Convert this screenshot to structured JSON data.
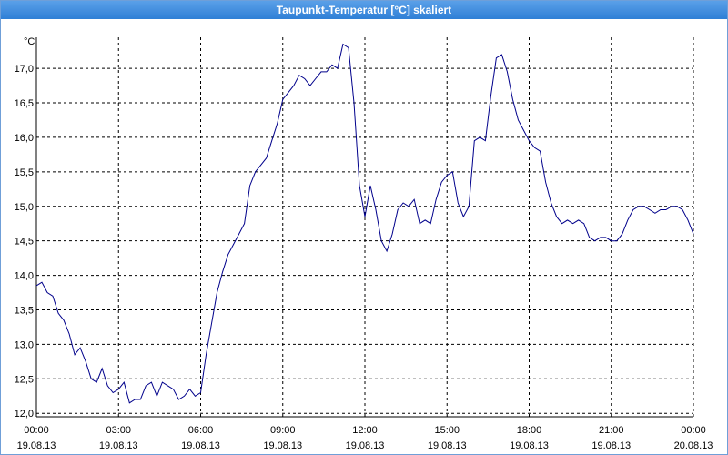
{
  "window": {
    "title": "Taupunkt-Temperatur [°C] skaliert"
  },
  "chart_data": {
    "type": "line",
    "title": "Taupunkt-Temperatur [°C] skaliert",
    "ylabel": "°C",
    "xlabel": "",
    "ylim": [
      11.95,
      17.45
    ],
    "xlim": [
      0,
      24
    ],
    "grid": true,
    "line_color": "#00008b",
    "y_ticks": [
      "12,0",
      "12,5",
      "13,0",
      "13,5",
      "14,0",
      "14,5",
      "15,0",
      "15,5",
      "16,0",
      "16,5",
      "17,0"
    ],
    "x_ticks": [
      {
        "time": "00:00",
        "date": "19.08.13"
      },
      {
        "time": "03:00",
        "date": "19.08.13"
      },
      {
        "time": "06:00",
        "date": "19.08.13"
      },
      {
        "time": "09:00",
        "date": "19.08.13"
      },
      {
        "time": "12:00",
        "date": "19.08.13"
      },
      {
        "time": "15:00",
        "date": "19.08.13"
      },
      {
        "time": "18:00",
        "date": "19.08.13"
      },
      {
        "time": "21:00",
        "date": "19.08.13"
      },
      {
        "time": "00:00",
        "date": "20.08.13"
      }
    ],
    "series": [
      {
        "x": [
          0,
          0.2,
          0.4,
          0.6,
          0.8,
          1.0,
          1.2,
          1.4,
          1.6,
          1.8,
          2.0,
          2.2,
          2.4,
          2.6,
          2.8,
          3.0,
          3.2,
          3.4,
          3.6,
          3.8,
          4.0,
          4.2,
          4.4,
          4.6,
          4.8,
          5.0,
          5.2,
          5.4,
          5.6,
          5.8,
          6.0,
          6.2,
          6.4,
          6.6,
          6.8,
          7.0,
          7.2,
          7.4,
          7.6,
          7.8,
          8.0,
          8.2,
          8.4,
          8.6,
          8.8,
          9.0,
          9.2,
          9.4,
          9.6,
          9.8,
          10.0,
          10.2,
          10.4,
          10.6,
          10.8,
          11.0,
          11.2,
          11.4,
          11.6,
          11.8,
          12.0,
          12.2,
          12.4,
          12.6,
          12.8,
          13.0,
          13.2,
          13.4,
          13.6,
          13.8,
          14.0,
          14.2,
          14.4,
          14.6,
          14.8,
          15.0,
          15.2,
          15.4,
          15.6,
          15.8,
          16.0,
          16.2,
          16.4,
          16.6,
          16.8,
          17.0,
          17.2,
          17.4,
          17.6,
          17.8,
          18.0,
          18.2,
          18.4,
          18.6,
          18.8,
          19.0,
          19.2,
          19.4,
          19.6,
          19.8,
          20.0,
          20.2,
          20.4,
          20.6,
          20.8,
          21.0,
          21.2,
          21.4,
          21.6,
          21.8,
          22.0,
          22.2,
          22.4,
          22.6,
          22.8,
          23.0,
          23.2,
          23.4,
          23.6,
          23.8,
          24.0
        ],
        "y": [
          13.85,
          13.9,
          13.75,
          13.7,
          13.45,
          13.35,
          13.15,
          12.85,
          12.95,
          12.75,
          12.5,
          12.45,
          12.65,
          12.4,
          12.3,
          12.35,
          12.45,
          12.15,
          12.2,
          12.2,
          12.4,
          12.45,
          12.25,
          12.45,
          12.4,
          12.35,
          12.2,
          12.25,
          12.35,
          12.25,
          12.3,
          12.85,
          13.3,
          13.75,
          14.05,
          14.3,
          14.45,
          14.6,
          14.75,
          15.3,
          15.5,
          15.6,
          15.7,
          15.95,
          16.2,
          16.55,
          16.65,
          16.75,
          16.9,
          16.85,
          16.75,
          16.85,
          16.95,
          16.95,
          17.05,
          17.0,
          17.35,
          17.3,
          16.5,
          15.3,
          14.85,
          15.3,
          14.95,
          14.5,
          14.35,
          14.6,
          14.95,
          15.05,
          15.0,
          15.1,
          14.75,
          14.8,
          14.75,
          15.1,
          15.35,
          15.45,
          15.5,
          15.05,
          14.85,
          15.0,
          15.95,
          16.0,
          15.95,
          16.6,
          17.15,
          17.2,
          16.95,
          16.55,
          16.25,
          16.1,
          15.95,
          15.85,
          15.8,
          15.35,
          15.05,
          14.85,
          14.75,
          14.8,
          14.75,
          14.8,
          14.75,
          14.55,
          14.5,
          14.55,
          14.55,
          14.5,
          14.5,
          14.6,
          14.8,
          14.95,
          15.0,
          15.0,
          14.95,
          14.9,
          14.95,
          14.95,
          15.0,
          15.0,
          14.95,
          14.8,
          14.6
        ]
      }
    ]
  }
}
